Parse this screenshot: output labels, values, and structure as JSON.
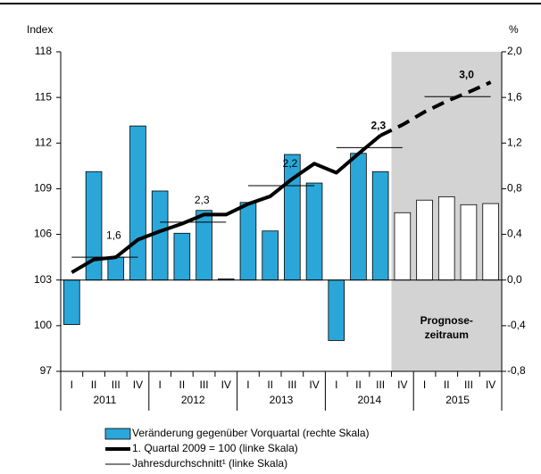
{
  "chart_data": {
    "type": "bar-line",
    "y_label": "Index",
    "y2_label": "%",
    "categories": [
      "I",
      "II",
      "III",
      "IV",
      "I",
      "II",
      "III",
      "IV",
      "I",
      "II",
      "III",
      "IV",
      "I",
      "II",
      "III",
      "IV",
      "I",
      "II",
      "III",
      "IV"
    ],
    "years": [
      "2011",
      "2012",
      "2013",
      "2014",
      "2015"
    ],
    "ylim": [
      97,
      118
    ],
    "yticks": [
      97,
      100,
      103,
      106,
      109,
      112,
      115,
      118
    ],
    "y2lim": [
      -0.8,
      2.0
    ],
    "y2ticks": [
      {
        "value": -0.8,
        "label": "-0,8"
      },
      {
        "value": -0.4,
        "label": "-0,4"
      },
      {
        "value": 0,
        "label": "0,0"
      },
      {
        "value": 0.4,
        "label": "0,4"
      },
      {
        "value": 0.8,
        "label": "0,8"
      },
      {
        "value": 1.2,
        "label": "1,2"
      },
      {
        "value": 1.6,
        "label": "1,6"
      },
      {
        "value": 2.0,
        "label": "2,0"
      }
    ],
    "series": [
      {
        "name": "Veränderung gegenüber Vorquartal (rechte Skala)",
        "type": "bar",
        "axis": "y2",
        "color": "#2aa7d8",
        "values": [
          -0.39,
          0.95,
          0.2,
          1.35,
          0.78,
          0.41,
          0.61,
          0.01,
          0.68,
          0.43,
          1.1,
          0.85,
          -0.53,
          1.11,
          0.95,
          0.59,
          0.7,
          0.73,
          0.66,
          0.67
        ]
      },
      {
        "name": "1. Quartal 2009 = 100 (linke Skala)",
        "type": "line",
        "color": "#000000",
        "values": [
          103.5,
          104.35,
          104.5,
          105.65,
          106.2,
          106.7,
          107.3,
          107.3,
          108.0,
          108.5,
          109.65,
          110.65,
          110.05,
          111.3,
          112.5,
          null,
          null,
          null,
          null,
          null
        ]
      },
      {
        "type": "line",
        "dashed": true,
        "color": "#000000",
        "values": [
          null,
          null,
          null,
          null,
          null,
          null,
          null,
          null,
          null,
          null,
          null,
          null,
          null,
          null,
          112.5,
          113.2,
          114.05,
          114.75,
          115.35,
          116.0
        ]
      }
    ],
    "annual_average": {
      "name": "Jahresdurchschnitt¹ (linke Skala)",
      "values": [
        104.5,
        106.8,
        109.2,
        111.7,
        115.05
      ],
      "annotations": [
        {
          "text": "1,6",
          "bold": false
        },
        {
          "text": "2,3",
          "bold": false
        },
        {
          "text": "2,2",
          "bold": false
        },
        {
          "text": "2,3",
          "bold": true
        },
        {
          "text": "3,0",
          "bold": true
        }
      ]
    },
    "forecast": {
      "start_index": 15,
      "color": "#d3d3d3",
      "bar_color": "#ffffff",
      "label": [
        "Prognose-",
        "zeitraum"
      ]
    }
  }
}
